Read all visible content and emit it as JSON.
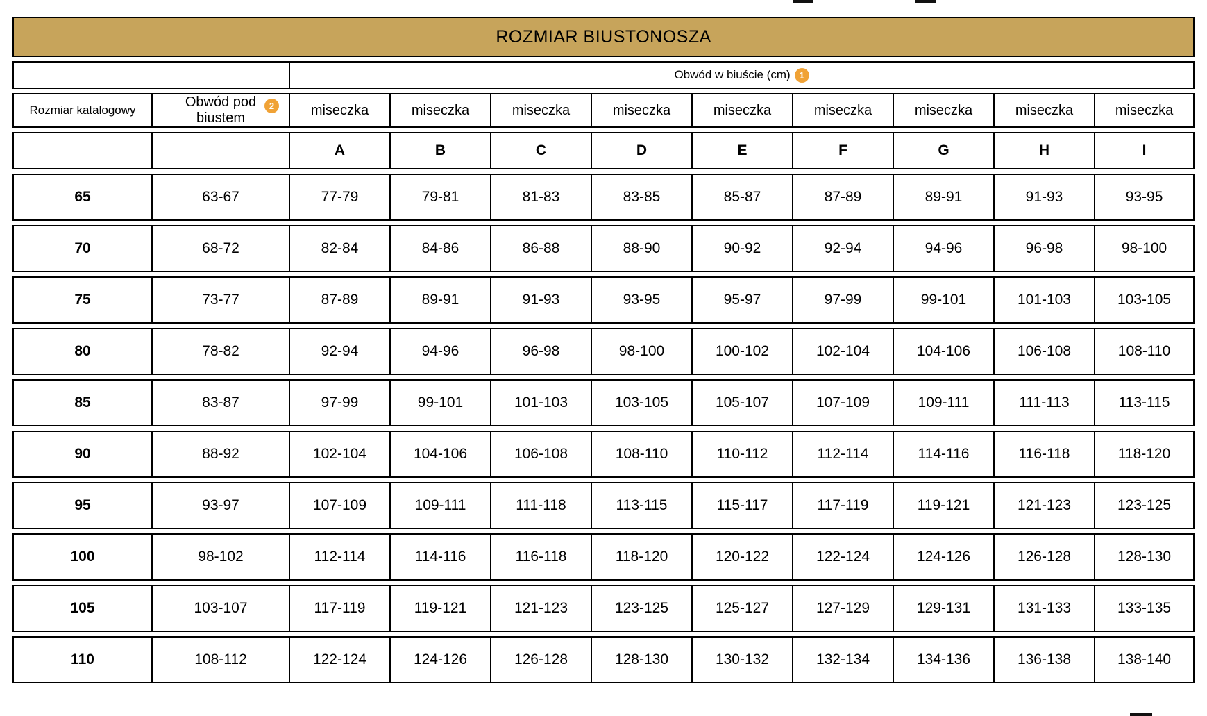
{
  "chart_data": {
    "type": "table",
    "title": "ROZMIAR BIUSTONOSZA",
    "bust_group_header": "Obwód w biuście (cm)",
    "footnote1": "1",
    "footnote2": "2",
    "catalog_header": "Rozmiar katalogowy",
    "underbust_header": {
      "line1": "Obwód pod",
      "line2": "biustem"
    },
    "cup_header": "miseczka",
    "cup_letters": [
      "A",
      "B",
      "C",
      "D",
      "E",
      "F",
      "G",
      "H",
      "I"
    ],
    "rows": [
      {
        "size": "65",
        "underbust": "63-67",
        "cups": [
          "77-79",
          "79-81",
          "81-83",
          "83-85",
          "85-87",
          "87-89",
          "89-91",
          "91-93",
          "93-95"
        ]
      },
      {
        "size": "70",
        "underbust": "68-72",
        "cups": [
          "82-84",
          "84-86",
          "86-88",
          "88-90",
          "90-92",
          "92-94",
          "94-96",
          "96-98",
          "98-100"
        ]
      },
      {
        "size": "75",
        "underbust": "73-77",
        "cups": [
          "87-89",
          "89-91",
          "91-93",
          "93-95",
          "95-97",
          "97-99",
          "99-101",
          "101-103",
          "103-105"
        ]
      },
      {
        "size": "80",
        "underbust": "78-82",
        "cups": [
          "92-94",
          "94-96",
          "96-98",
          "98-100",
          "100-102",
          "102-104",
          "104-106",
          "106-108",
          "108-110"
        ]
      },
      {
        "size": "85",
        "underbust": "83-87",
        "cups": [
          "97-99",
          "99-101",
          "101-103",
          "103-105",
          "105-107",
          "107-109",
          "109-111",
          "111-113",
          "113-115"
        ]
      },
      {
        "size": "90",
        "underbust": "88-92",
        "cups": [
          "102-104",
          "104-106",
          "106-108",
          "108-110",
          "110-112",
          "112-114",
          "114-116",
          "116-118",
          "118-120"
        ]
      },
      {
        "size": "95",
        "underbust": "93-97",
        "cups": [
          "107-109",
          "109-111",
          "111-118",
          "113-115",
          "115-117",
          "117-119",
          "119-121",
          "121-123",
          "123-125"
        ]
      },
      {
        "size": "100",
        "underbust": "98-102",
        "cups": [
          "112-114",
          "114-116",
          "116-118",
          "118-120",
          "120-122",
          "122-124",
          "124-126",
          "126-128",
          "128-130"
        ]
      },
      {
        "size": "105",
        "underbust": "103-107",
        "cups": [
          "117-119",
          "119-121",
          "121-123",
          "123-125",
          "125-127",
          "127-129",
          "129-131",
          "131-133",
          "133-135"
        ]
      },
      {
        "size": "110",
        "underbust": "108-112",
        "cups": [
          "122-124",
          "124-126",
          "126-128",
          "128-130",
          "130-132",
          "132-134",
          "134-136",
          "136-138",
          "138-140"
        ]
      }
    ]
  },
  "colors": {
    "header_gold": "#C7A45B",
    "badge_orange": "#F0A236",
    "border_black": "#000000"
  }
}
